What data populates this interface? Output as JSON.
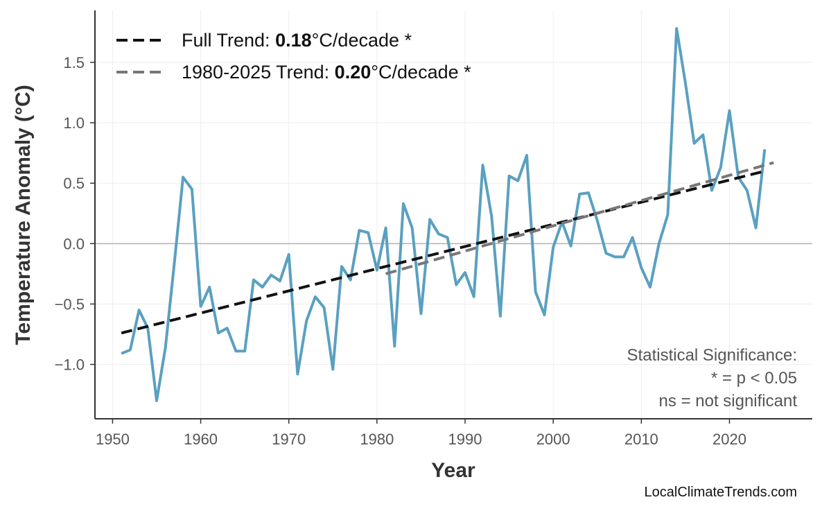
{
  "chart_data": {
    "type": "line",
    "xlabel": "Year",
    "ylabel": "Temperature Anomaly (°C)",
    "xlim": [
      1948,
      2029.4
    ],
    "ylim": [
      -1.45,
      1.93
    ],
    "xticks": [
      1950,
      1960,
      1970,
      1980,
      1990,
      2000,
      2010,
      2020
    ],
    "yticks": [
      -1.0,
      -0.5,
      0.0,
      0.5,
      1.0,
      1.5
    ],
    "ytick_labels": [
      "−1.0",
      "−0.5",
      "0.0",
      "0.5",
      "1.0",
      "1.5"
    ],
    "grid": true,
    "legend_position": "top-left",
    "series": [
      {
        "color": "#5aa0c0",
        "x": [
          1951,
          1952,
          1953,
          1954,
          1955,
          1956,
          1957,
          1958,
          1959,
          1960,
          1961,
          1962,
          1963,
          1964,
          1965,
          1966,
          1967,
          1968,
          1969,
          1970,
          1971,
          1972,
          1973,
          1974,
          1975,
          1976,
          1977,
          1978,
          1979,
          1980,
          1981,
          1982,
          1983,
          1984,
          1985,
          1986,
          1987,
          1988,
          1989,
          1990,
          1991,
          1992,
          1993,
          1994,
          1995,
          1996,
          1997,
          1998,
          1999,
          2000,
          2001,
          2002,
          2003,
          2004,
          2005,
          2006,
          2007,
          2008,
          2009,
          2010,
          2011,
          2012,
          2013,
          2014,
          2015,
          2016,
          2017,
          2018,
          2019,
          2020,
          2021,
          2022,
          2023,
          2024
        ],
        "y": [
          -0.91,
          -0.88,
          -0.55,
          -0.7,
          -1.3,
          -0.86,
          -0.17,
          0.55,
          0.45,
          -0.52,
          -0.36,
          -0.74,
          -0.7,
          -0.89,
          -0.89,
          -0.3,
          -0.36,
          -0.26,
          -0.31,
          -0.09,
          -1.08,
          -0.64,
          -0.44,
          -0.53,
          -1.04,
          -0.19,
          -0.3,
          0.11,
          0.09,
          -0.22,
          0.13,
          -0.85,
          0.33,
          0.13,
          -0.58,
          0.2,
          0.08,
          0.05,
          -0.34,
          -0.24,
          -0.44,
          0.65,
          0.23,
          -0.6,
          0.56,
          0.52,
          0.73,
          -0.4,
          -0.59,
          -0.03,
          0.18,
          -0.02,
          0.41,
          0.42,
          0.19,
          -0.08,
          -0.11,
          -0.11,
          0.05,
          -0.2,
          -0.36,
          0.0,
          0.24,
          1.78,
          1.33,
          0.83,
          0.9,
          0.44,
          0.63,
          1.1,
          0.55,
          0.44,
          0.13,
          0.78
        ]
      },
      {
        "name": "Full Trend",
        "color": "#111111",
        "style": "dashed",
        "x": [
          1951,
          2024
        ],
        "y": [
          -0.74,
          0.6
        ],
        "legend_prefix": "Full Trend: ",
        "legend_value": "0.18",
        "legend_suffix": "°C/decade *"
      },
      {
        "name": "1980-2025 Trend",
        "color": "#777777",
        "style": "dashed",
        "x": [
          1981,
          2025
        ],
        "y": [
          -0.25,
          0.67
        ],
        "legend_prefix": "1980-2025 Trend: ",
        "legend_value": "0.20",
        "legend_suffix": "°C/decade *"
      }
    ],
    "annotations": [
      "Statistical Significance:",
      "* = p < 0.05",
      "ns = not significant"
    ]
  },
  "credit": "LocalClimateTrends.com"
}
